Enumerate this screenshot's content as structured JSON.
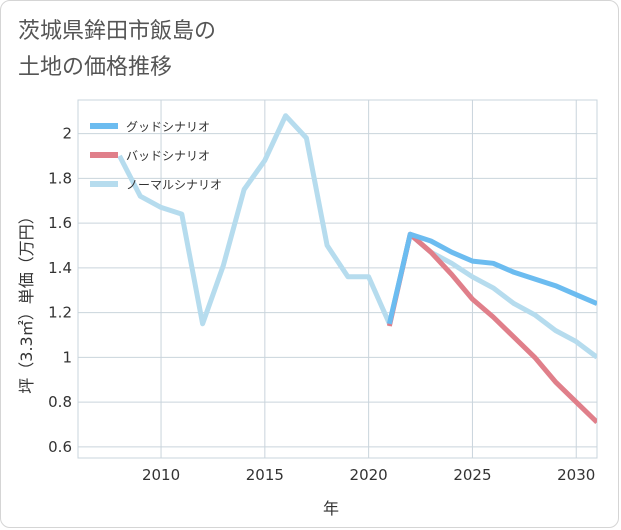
{
  "title": "茨城県鉾田市飯島の\n土地の価格推移",
  "chart_data": {
    "type": "line",
    "title": "茨城県鉾田市飯島の 土地の価格推移",
    "xlabel": "年",
    "ylabel": "坪（3.3㎡）単価（万円）",
    "xlim": [
      2006,
      2031
    ],
    "ylim": [
      0.55,
      2.15
    ],
    "xticks": [
      2010,
      2015,
      2020,
      2025,
      2030
    ],
    "yticks": [
      0.6,
      0.8,
      1,
      1.2,
      1.4,
      1.6,
      1.8,
      2
    ],
    "ytick_labels": [
      "0.6",
      "0.8",
      "1",
      "1.2",
      "1.4",
      "1.6",
      "1.8",
      "2"
    ],
    "grid": true,
    "legend_position": "top-left",
    "series": [
      {
        "name": "グッドシナリオ",
        "color": "#6cbcf0",
        "x": [
          2021,
          2022,
          2023,
          2024,
          2025,
          2026,
          2027,
          2028,
          2029,
          2030,
          2031
        ],
        "y": [
          1.15,
          1.55,
          1.52,
          1.47,
          1.43,
          1.42,
          1.38,
          1.35,
          1.32,
          1.28,
          1.24
        ]
      },
      {
        "name": "バッドシナリオ",
        "color": "#e07f8a",
        "x": [
          2021,
          2022,
          2023,
          2024,
          2025,
          2026,
          2027,
          2028,
          2029,
          2030,
          2031
        ],
        "y": [
          1.14,
          1.55,
          1.47,
          1.37,
          1.26,
          1.18,
          1.09,
          1.0,
          0.89,
          0.8,
          0.71
        ]
      },
      {
        "name": "ノーマルシナリオ",
        "color": "#b6dcee",
        "x": [
          2008,
          2009,
          2010,
          2011,
          2012,
          2013,
          2014,
          2015,
          2016,
          2017,
          2018,
          2019,
          2020,
          2021,
          2022,
          2023,
          2024,
          2025,
          2026,
          2027,
          2028,
          2029,
          2030,
          2031
        ],
        "y": [
          1.9,
          1.72,
          1.67,
          1.64,
          1.15,
          1.41,
          1.75,
          1.88,
          2.08,
          1.98,
          1.5,
          1.36,
          1.36,
          1.15,
          1.55,
          1.47,
          1.42,
          1.36,
          1.31,
          1.24,
          1.19,
          1.12,
          1.07,
          1.0
        ]
      }
    ]
  }
}
